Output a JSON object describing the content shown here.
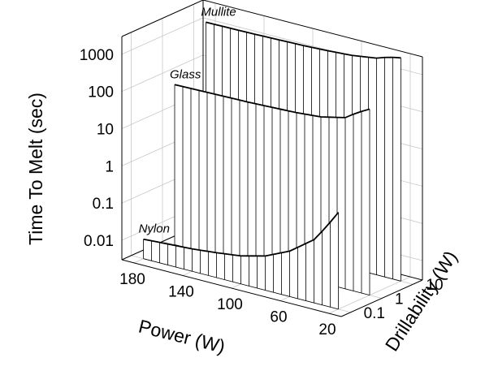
{
  "chart_data": {
    "type": "3d-waterfall-line",
    "title": "",
    "xlabel": "Power (W)",
    "ylabel": "Drillability (W)",
    "zlabel": "Time To Melt (sec)",
    "x_ticks": [
      180,
      140,
      100,
      60,
      20
    ],
    "y_ticks": [
      "0.1",
      "1",
      "10"
    ],
    "z_ticks": [
      "0.01",
      "0.1",
      "1",
      "10",
      "100",
      "1000"
    ],
    "xlim": [
      10,
      190
    ],
    "zlim": [
      0.003,
      3000
    ],
    "z_scale": "log",
    "y_scale": "log",
    "grid": true,
    "series": [
      {
        "name": "Nylon",
        "drillability": 0.1,
        "x": [
          180,
          160,
          140,
          120,
          100,
          80,
          60,
          40,
          30,
          20
        ],
        "values": [
          0.01,
          0.011,
          0.012,
          0.014,
          0.017,
          0.025,
          0.05,
          0.15,
          0.4,
          1.2
        ]
      },
      {
        "name": "Glass",
        "drillability": 1,
        "x": [
          180,
          160,
          140,
          120,
          100,
          80,
          60,
          40,
          30,
          20
        ],
        "values": [
          60,
          62,
          64,
          66,
          70,
          75,
          85,
          120,
          200,
          300
        ]
      },
      {
        "name": "Mullite",
        "drillability": 10,
        "x": [
          180,
          160,
          140,
          120,
          100,
          80,
          60,
          40,
          30,
          20
        ],
        "values": [
          1200,
          1220,
          1250,
          1300,
          1350,
          1450,
          1600,
          2000,
          2600,
          3000
        ]
      }
    ]
  }
}
